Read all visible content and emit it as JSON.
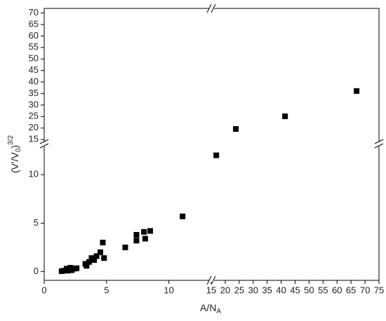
{
  "chart_data": {
    "type": "scatter",
    "xlabel": [
      "A/N",
      "A"
    ],
    "ylabel": [
      "(V'/V",
      "0",
      ")",
      "3/2"
    ],
    "color": "#000000",
    "x_segments": [
      {
        "xlim": [
          0,
          13.4
        ],
        "xticks": [
          0,
          5,
          10
        ]
      },
      {
        "xlim": [
          15,
          75
        ],
        "xticks": [
          15,
          20,
          25,
          30,
          35,
          40,
          45,
          50,
          55,
          60,
          65,
          70,
          75
        ]
      }
    ],
    "y_segments": [
      {
        "ylim": [
          -0.9,
          13.2
        ],
        "yticks": [
          0,
          5,
          10
        ]
      },
      {
        "ylim": [
          13.2,
          72
        ],
        "yticks": [
          15,
          20,
          25,
          30,
          35,
          40,
          45,
          50,
          55,
          60,
          65,
          70
        ]
      }
    ],
    "x": [
      1.4,
      1.6,
      1.8,
      1.9,
      2.0,
      2.1,
      2.2,
      2.4,
      2.6,
      3.3,
      3.4,
      3.6,
      3.8,
      4.0,
      4.2,
      4.5,
      4.7,
      4.8,
      6.5,
      7.4,
      7.4,
      8.0,
      8.1,
      8.5,
      11.1,
      16.8,
      23.8,
      41.4,
      67
    ],
    "y": [
      0.05,
      0.1,
      0.3,
      0.1,
      0.2,
      0.4,
      0.15,
      0.3,
      0.35,
      0.8,
      0.6,
      1.0,
      1.4,
      1.2,
      1.6,
      2.0,
      3.0,
      1.4,
      2.5,
      3.2,
      3.8,
      4.1,
      3.4,
      4.2,
      5.7,
      12.0,
      19.6,
      25.1,
      36.1
    ]
  }
}
